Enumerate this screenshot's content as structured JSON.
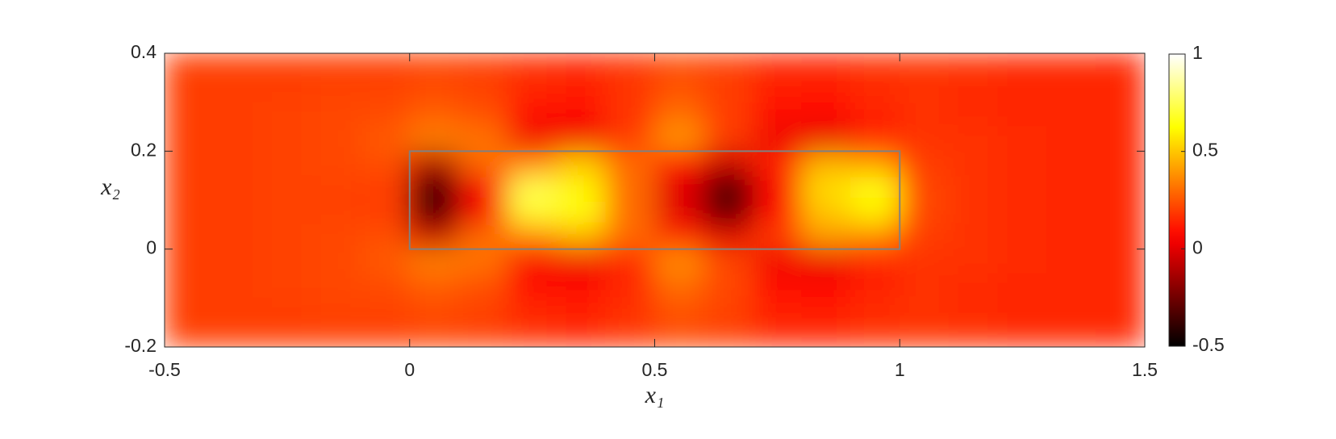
{
  "chart_data": {
    "type": "heatmap",
    "colormap": "hot",
    "xlabel": "x₁",
    "ylabel": "x₂",
    "xlim": [
      -0.5,
      1.5
    ],
    "ylim": [
      -0.2,
      0.4
    ],
    "xticks": [
      -0.5,
      0,
      0.5,
      1,
      1.5
    ],
    "yticks": [
      -0.2,
      0,
      0.2,
      0.4
    ],
    "clim": [
      -0.5,
      1
    ],
    "cticks": [
      -0.5,
      0,
      0.5,
      1
    ],
    "outline": {
      "x": [
        0,
        1
      ],
      "y": [
        0,
        0.2
      ],
      "color": "#808080"
    },
    "x": [
      -0.45,
      -0.35,
      -0.25,
      -0.15,
      -0.05,
      0.05,
      0.15,
      0.25,
      0.35,
      0.45,
      0.55,
      0.65,
      0.75,
      0.85,
      0.95,
      1.05,
      1.15,
      1.25,
      1.35,
      1.45
    ],
    "y": [
      0.375,
      0.325,
      0.275,
      0.225,
      0.175,
      0.125,
      0.075,
      0.025,
      -0.025,
      -0.075,
      -0.125,
      -0.175
    ],
    "z": [
      [
        0.2,
        0.2,
        0.2,
        0.2,
        0.2,
        0.21,
        0.2,
        0.17,
        0.16,
        0.18,
        0.22,
        0.2,
        0.16,
        0.15,
        0.17,
        0.18,
        0.17,
        0.16,
        0.16,
        0.15
      ],
      [
        0.2,
        0.2,
        0.2,
        0.21,
        0.21,
        0.23,
        0.21,
        0.15,
        0.13,
        0.18,
        0.25,
        0.2,
        0.13,
        0.12,
        0.16,
        0.17,
        0.16,
        0.15,
        0.15,
        0.15
      ],
      [
        0.2,
        0.2,
        0.21,
        0.22,
        0.23,
        0.27,
        0.24,
        0.1,
        0.08,
        0.17,
        0.3,
        0.2,
        0.08,
        0.07,
        0.14,
        0.17,
        0.16,
        0.15,
        0.15,
        0.15
      ],
      [
        0.2,
        0.2,
        0.21,
        0.22,
        0.26,
        0.35,
        0.32,
        0.03,
        0.02,
        0.2,
        0.4,
        0.2,
        0.02,
        0.0,
        0.12,
        0.17,
        0.17,
        0.16,
        0.15,
        0.15
      ],
      [
        0.2,
        0.2,
        0.21,
        0.22,
        0.24,
        -0.1,
        0.3,
        0.35,
        0.5,
        0.3,
        0.1,
        -0.05,
        0.15,
        0.45,
        0.4,
        0.2,
        0.17,
        0.16,
        0.15,
        0.15
      ],
      [
        0.2,
        0.2,
        0.21,
        0.21,
        0.2,
        -0.35,
        0.05,
        0.75,
        0.6,
        0.3,
        0.0,
        -0.35,
        0.05,
        0.55,
        0.65,
        0.22,
        0.17,
        0.16,
        0.15,
        0.15
      ],
      [
        0.2,
        0.2,
        0.21,
        0.21,
        0.2,
        -0.35,
        0.05,
        0.7,
        0.65,
        0.3,
        0.0,
        -0.3,
        0.1,
        0.5,
        0.6,
        0.22,
        0.17,
        0.16,
        0.15,
        0.15
      ],
      [
        0.2,
        0.2,
        0.21,
        0.22,
        0.24,
        -0.05,
        0.3,
        0.35,
        0.45,
        0.3,
        0.15,
        0.0,
        0.2,
        0.4,
        0.35,
        0.2,
        0.17,
        0.16,
        0.15,
        0.15
      ],
      [
        0.2,
        0.2,
        0.21,
        0.22,
        0.26,
        0.35,
        0.32,
        0.05,
        0.02,
        0.15,
        0.38,
        0.22,
        0.03,
        0.01,
        0.12,
        0.17,
        0.17,
        0.16,
        0.15,
        0.15
      ],
      [
        0.2,
        0.2,
        0.21,
        0.22,
        0.23,
        0.27,
        0.24,
        0.1,
        0.08,
        0.15,
        0.3,
        0.22,
        0.08,
        0.07,
        0.14,
        0.17,
        0.16,
        0.15,
        0.15,
        0.15
      ],
      [
        0.2,
        0.2,
        0.2,
        0.21,
        0.21,
        0.23,
        0.21,
        0.15,
        0.13,
        0.17,
        0.25,
        0.21,
        0.13,
        0.12,
        0.16,
        0.17,
        0.16,
        0.15,
        0.15,
        0.15
      ],
      [
        0.2,
        0.2,
        0.2,
        0.2,
        0.2,
        0.21,
        0.2,
        0.17,
        0.16,
        0.18,
        0.22,
        0.2,
        0.16,
        0.15,
        0.17,
        0.18,
        0.17,
        0.16,
        0.16,
        0.15
      ]
    ]
  }
}
